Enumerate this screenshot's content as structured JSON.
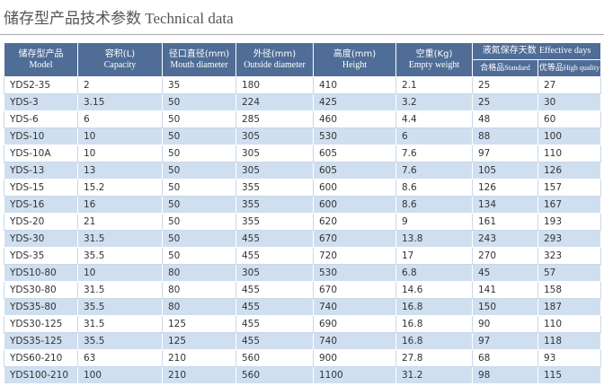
{
  "header": {
    "title": "储存型产品技术参数 Technical data"
  },
  "table": {
    "columns": [
      {
        "zh": "储存型产品",
        "en": "Model"
      },
      {
        "zh": "容积(L)",
        "en": "Capacity"
      },
      {
        "zh": "径口直径(mm)",
        "en": "Mouth diameter"
      },
      {
        "zh": "外径(mm)",
        "en": "Outside diameter"
      },
      {
        "zh": "高度(mm)",
        "en": "Height"
      },
      {
        "zh": "空重(Kg)",
        "en": "Empty weight"
      }
    ],
    "group": {
      "zh": "液氮保存天数",
      "en": "Effective days",
      "sub": [
        {
          "zh": "合格品",
          "en": "Standard"
        },
        {
          "zh": "优等品",
          "en": "High quality"
        }
      ]
    },
    "rows": [
      [
        "YDS2-35",
        "2",
        "35",
        "180",
        "410",
        "2.1",
        "25",
        "27"
      ],
      [
        "YDS-3",
        "3.15",
        "50",
        "224",
        "425",
        "3.2",
        "25",
        "30"
      ],
      [
        "YDS-6",
        "6",
        "50",
        "285",
        "460",
        "4.4",
        "48",
        "60"
      ],
      [
        "YDS-10",
        "10",
        "50",
        "305",
        "530",
        "6",
        "88",
        "100"
      ],
      [
        "YDS-10A",
        "10",
        "50",
        "305",
        "605",
        "7.6",
        "97",
        "110"
      ],
      [
        "YDS-13",
        "13",
        "50",
        "305",
        "605",
        "7.6",
        "105",
        "126"
      ],
      [
        "YDS-15",
        "15.2",
        "50",
        "355",
        "600",
        "8.6",
        "126",
        "157"
      ],
      [
        "YDS-16",
        "16",
        "50",
        "355",
        "600",
        "8.6",
        "134",
        "167"
      ],
      [
        "YDS-20",
        "21",
        "50",
        "355",
        "620",
        "9",
        "161",
        "193"
      ],
      [
        "YDS-30",
        "31.5",
        "50",
        "455",
        "670",
        "13.8",
        "243",
        "293"
      ],
      [
        "YDS-35",
        "35.5",
        "50",
        "455",
        "720",
        "17",
        "270",
        "323"
      ],
      [
        "YDS10-80",
        "10",
        "80",
        "305",
        "530",
        "6.8",
        "45",
        "57"
      ],
      [
        "YDS30-80",
        "31.5",
        "80",
        "455",
        "670",
        "14.6",
        "141",
        "158"
      ],
      [
        "YDS35-80",
        "35.5",
        "80",
        "455",
        "740",
        "16.8",
        "150",
        "187"
      ],
      [
        "YDS30-125",
        "31.5",
        "125",
        "455",
        "690",
        "16.8",
        "90",
        "110"
      ],
      [
        "YDS35-125",
        "35.5",
        "125",
        "455",
        "740",
        "16.8",
        "97",
        "118"
      ],
      [
        "YDS60-210",
        "63",
        "210",
        "560",
        "900",
        "27.8",
        "68",
        "93"
      ],
      [
        "YDS100-210",
        "100",
        "210",
        "560",
        "1100",
        "31.2",
        "98",
        "115"
      ]
    ]
  }
}
